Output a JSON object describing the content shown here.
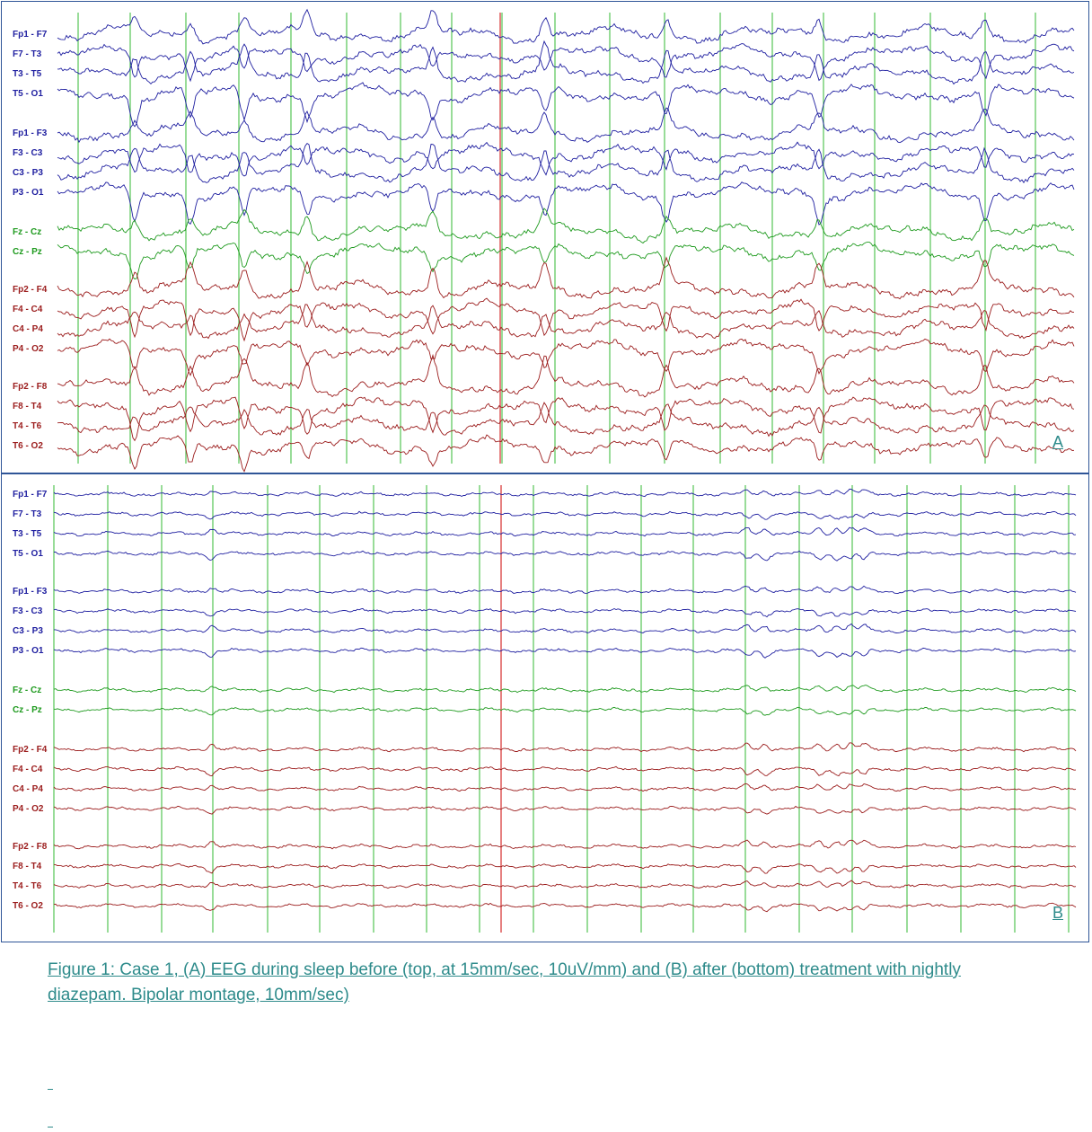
{
  "panels": [
    {
      "letter": "A",
      "channels": [
        {
          "label": "Fp1 - F7",
          "group": "left-temporal"
        },
        {
          "label": "F7 - T3",
          "group": "left-temporal"
        },
        {
          "label": "T3 - T5",
          "group": "left-temporal"
        },
        {
          "label": "T5 - O1",
          "group": "left-temporal"
        },
        {
          "label": "Fp1 - F3",
          "group": "left-parasagittal"
        },
        {
          "label": "F3 - C3",
          "group": "left-parasagittal"
        },
        {
          "label": "C3 - P3",
          "group": "left-parasagittal"
        },
        {
          "label": "P3 - O1",
          "group": "left-parasagittal"
        },
        {
          "label": "Fz - Cz",
          "group": "midline"
        },
        {
          "label": "Cz - Pz",
          "group": "midline"
        },
        {
          "label": "Fp2 - F4",
          "group": "right-parasagittal"
        },
        {
          "label": "F4 - C4",
          "group": "right-parasagittal"
        },
        {
          "label": "C4 - P4",
          "group": "right-parasagittal"
        },
        {
          "label": "P4 - O2",
          "group": "right-parasagittal"
        },
        {
          "label": "Fp2 - F8",
          "group": "right-temporal"
        },
        {
          "label": "F8 - T4",
          "group": "right-temporal"
        },
        {
          "label": "T4 - T6",
          "group": "right-temporal"
        },
        {
          "label": "T6 - O2",
          "group": "right-temporal"
        }
      ]
    },
    {
      "letter": "B",
      "channels": [
        {
          "label": "Fp1 - F7",
          "group": "left-temporal"
        },
        {
          "label": "F7 - T3",
          "group": "left-temporal"
        },
        {
          "label": "T3 - T5",
          "group": "left-temporal"
        },
        {
          "label": "T5 - O1",
          "group": "left-temporal"
        },
        {
          "label": "Fp1 - F3",
          "group": "left-parasagittal"
        },
        {
          "label": "F3 - C3",
          "group": "left-parasagittal"
        },
        {
          "label": "C3 - P3",
          "group": "left-parasagittal"
        },
        {
          "label": "P3 - O1",
          "group": "left-parasagittal"
        },
        {
          "label": "Fz - Cz",
          "group": "midline"
        },
        {
          "label": "Cz - Pz",
          "group": "midline"
        },
        {
          "label": "Fp2 - F4",
          "group": "right-parasagittal"
        },
        {
          "label": "F4 - C4",
          "group": "right-parasagittal"
        },
        {
          "label": "C4 - P4",
          "group": "right-parasagittal"
        },
        {
          "label": "P4 - O2",
          "group": "right-parasagittal"
        },
        {
          "label": "Fp2 - F8",
          "group": "right-temporal"
        },
        {
          "label": "F8 - T4",
          "group": "right-temporal"
        },
        {
          "label": "T4 - T6",
          "group": "right-temporal"
        },
        {
          "label": "T6 - O2",
          "group": "right-temporal"
        }
      ]
    }
  ],
  "colors": {
    "left": "#1f1fa0",
    "midline": "#1e9a1e",
    "right": "#9b1c1c",
    "gridline": "#55c455",
    "marker": "#e06060",
    "frame": "#2f5597",
    "caption": "#2e8b8b"
  },
  "caption": "Figure 1: Case 1, (A) EEG during sleep before (top, at 15mm/sec, 10uV/mm) and (B) after (bottom) treatment with nightly diazepam. Bipolar montage, 10mm/sec)"
}
